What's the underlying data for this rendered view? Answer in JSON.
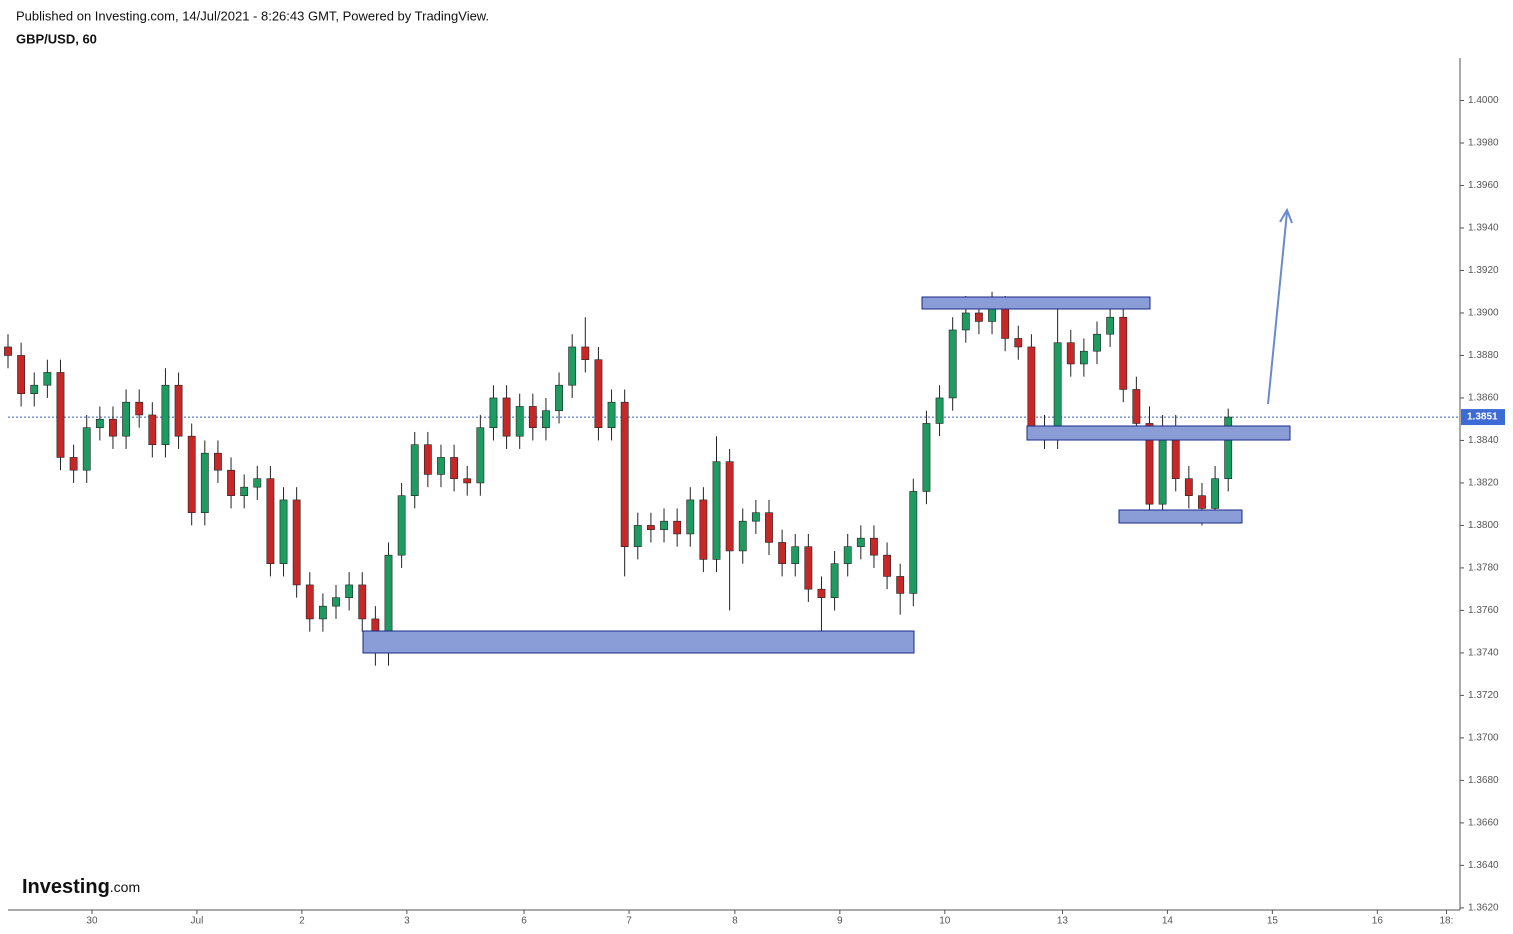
{
  "chart_data": {
    "type": "candlestick",
    "subtitle": "Published on Investing.com, 14/Jul/2021 - 8:26:43 GMT, Powered by TradingView.",
    "title": "GBP/USD, 60",
    "up_color": "#1e9b60",
    "down_color": "#c62828",
    "outline_color": "#222222",
    "xlim": [
      0,
      332
    ],
    "xticks": [
      {
        "value": 19.2,
        "label": "30"
      },
      {
        "value": 43.2,
        "label": "Jul"
      },
      {
        "value": 67.2,
        "label": "2"
      },
      {
        "value": 91.2,
        "label": "3"
      },
      {
        "value": 118,
        "label": "6"
      },
      {
        "value": 142,
        "label": "7"
      },
      {
        "value": 166.2,
        "label": "8"
      },
      {
        "value": 190.2,
        "label": "9"
      },
      {
        "value": 214.2,
        "label": "10"
      },
      {
        "value": 241.1,
        "label": "13"
      },
      {
        "value": 265.1,
        "label": "14"
      },
      {
        "value": 289.1,
        "label": "15"
      },
      {
        "value": 313.1,
        "label": "16"
      },
      {
        "value": 328.9,
        "label": "18:"
      }
    ],
    "ylim": [
      1.3619,
      1.402
    ],
    "yticks": [
      {
        "value": 1.362,
        "label": "1.3620"
      },
      {
        "value": 1.364,
        "label": "1.3640"
      },
      {
        "value": 1.366,
        "label": "1.3660"
      },
      {
        "value": 1.368,
        "label": "1.3680"
      },
      {
        "value": 1.37,
        "label": "1.3700"
      },
      {
        "value": 1.372,
        "label": "1.3720"
      },
      {
        "value": 1.374,
        "label": "1.3740"
      },
      {
        "value": 1.376,
        "label": "1.3760"
      },
      {
        "value": 1.378,
        "label": "1.3780"
      },
      {
        "value": 1.38,
        "label": "1.3800"
      },
      {
        "value": 1.382,
        "label": "1.3820"
      },
      {
        "value": 1.384,
        "label": "1.3840"
      },
      {
        "value": 1.386,
        "label": "1.3860"
      },
      {
        "value": 1.388,
        "label": "1.3880"
      },
      {
        "value": 1.39,
        "label": "1.3900"
      },
      {
        "value": 1.392,
        "label": "1.3920"
      },
      {
        "value": 1.394,
        "label": "1.3940"
      },
      {
        "value": 1.396,
        "label": "1.3960"
      },
      {
        "value": 1.398,
        "label": "1.3980"
      },
      {
        "value": 1.4,
        "label": "1.4000"
      }
    ],
    "last_price": 1.3851,
    "x": [
      0,
      3,
      6,
      9,
      12,
      15,
      18,
      21,
      24,
      27,
      30,
      33,
      36,
      39,
      42,
      45,
      48,
      51,
      54,
      57,
      60,
      63,
      66,
      69,
      72,
      75,
      78,
      81,
      84,
      87,
      90,
      93,
      96,
      99,
      102,
      105,
      108,
      111,
      114,
      117,
      120,
      123,
      126,
      129,
      132,
      135,
      138,
      141,
      144,
      147,
      150,
      153,
      156,
      159,
      162,
      165,
      168,
      171,
      174,
      177,
      180,
      183,
      186,
      189,
      192,
      195,
      198,
      201,
      204,
      207,
      210,
      213,
      216,
      219,
      222,
      225,
      228,
      231,
      234,
      237,
      240,
      243,
      246,
      249,
      252,
      255,
      258,
      261,
      264,
      267,
      270,
      273,
      276,
      279
    ],
    "open": [
      1.3884,
      1.388,
      1.3862,
      1.3866,
      1.3872,
      1.3832,
      1.3826,
      1.3846,
      1.385,
      1.3842,
      1.3858,
      1.3852,
      1.3838,
      1.3866,
      1.3842,
      1.3806,
      1.3834,
      1.3826,
      1.3814,
      1.3818,
      1.3822,
      1.3782,
      1.3812,
      1.3772,
      1.3756,
      1.3762,
      1.3766,
      1.3772,
      1.3756,
      1.374,
      1.3786,
      1.3814,
      1.3838,
      1.3824,
      1.3832,
      1.3822,
      1.382,
      1.3846,
      1.386,
      1.3842,
      1.3856,
      1.3846,
      1.3854,
      1.3866,
      1.3884,
      1.3878,
      1.3846,
      1.3858,
      1.379,
      1.38,
      1.3798,
      1.3802,
      1.3796,
      1.3812,
      1.3784,
      1.383,
      1.3788,
      1.3802,
      1.3806,
      1.3792,
      1.3782,
      1.379,
      1.377,
      1.3766,
      1.3782,
      1.379,
      1.3794,
      1.3786,
      1.3776,
      1.3768,
      1.3816,
      1.3848,
      1.386,
      1.3892,
      1.39,
      1.3896,
      1.3902,
      1.3888,
      1.3884,
      1.3846,
      1.3842,
      1.3886,
      1.3876,
      1.3882,
      1.389,
      1.3898,
      1.3864,
      1.3848,
      1.381,
      1.3846,
      1.3822,
      1.3814,
      1.3808,
      1.3822
    ],
    "high": [
      1.389,
      1.3886,
      1.3872,
      1.3878,
      1.3878,
      1.3838,
      1.3852,
      1.3856,
      1.3856,
      1.3864,
      1.3864,
      1.3858,
      1.3874,
      1.3872,
      1.3848,
      1.384,
      1.384,
      1.3832,
      1.3824,
      1.3828,
      1.3828,
      1.3818,
      1.3818,
      1.3778,
      1.3768,
      1.3772,
      1.3778,
      1.3778,
      1.3762,
      1.3792,
      1.382,
      1.3844,
      1.3844,
      1.3838,
      1.3838,
      1.3828,
      1.3852,
      1.3866,
      1.3866,
      1.3862,
      1.3862,
      1.386,
      1.3872,
      1.389,
      1.3898,
      1.3884,
      1.3864,
      1.3864,
      1.3806,
      1.3806,
      1.3808,
      1.3808,
      1.3818,
      1.3818,
      1.3842,
      1.3836,
      1.3808,
      1.3812,
      1.3812,
      1.3798,
      1.3796,
      1.3796,
      1.3776,
      1.3788,
      1.3796,
      1.38,
      1.38,
      1.3792,
      1.3782,
      1.3822,
      1.3854,
      1.3866,
      1.3898,
      1.3908,
      1.3906,
      1.391,
      1.3908,
      1.3894,
      1.389,
      1.3852,
      1.3906,
      1.3892,
      1.3888,
      1.3896,
      1.3906,
      1.3904,
      1.387,
      1.3856,
      1.3852,
      1.3852,
      1.3828,
      1.382,
      1.3828,
      1.3855
    ],
    "low": [
      1.3874,
      1.3856,
      1.3856,
      1.386,
      1.3826,
      1.382,
      1.382,
      1.384,
      1.3836,
      1.3836,
      1.3846,
      1.3832,
      1.3832,
      1.3836,
      1.38,
      1.38,
      1.382,
      1.3808,
      1.3808,
      1.3812,
      1.3776,
      1.3776,
      1.3766,
      1.375,
      1.375,
      1.3756,
      1.376,
      1.375,
      1.3734,
      1.3734,
      1.378,
      1.3808,
      1.3818,
      1.3818,
      1.3816,
      1.3814,
      1.3814,
      1.384,
      1.3836,
      1.3836,
      1.384,
      1.384,
      1.3848,
      1.386,
      1.3872,
      1.384,
      1.384,
      1.3776,
      1.3784,
      1.3792,
      1.3792,
      1.379,
      1.379,
      1.3778,
      1.3778,
      1.376,
      1.3782,
      1.3796,
      1.3786,
      1.3776,
      1.3776,
      1.3764,
      1.3744,
      1.376,
      1.3776,
      1.3784,
      1.378,
      1.377,
      1.3758,
      1.3762,
      1.381,
      1.3842,
      1.3854,
      1.3886,
      1.389,
      1.389,
      1.3882,
      1.3878,
      1.384,
      1.3836,
      1.3836,
      1.387,
      1.387,
      1.3876,
      1.3884,
      1.3858,
      1.3842,
      1.3802,
      1.3804,
      1.3816,
      1.3808,
      1.38,
      1.3802,
      1.3816
    ],
    "close": [
      1.388,
      1.3862,
      1.3866,
      1.3872,
      1.3832,
      1.3826,
      1.3846,
      1.385,
      1.3842,
      1.3858,
      1.3852,
      1.3838,
      1.3866,
      1.3842,
      1.3806,
      1.3834,
      1.3826,
      1.3814,
      1.3818,
      1.3822,
      1.3782,
      1.3812,
      1.3772,
      1.3756,
      1.3762,
      1.3766,
      1.3772,
      1.3756,
      1.374,
      1.3786,
      1.3814,
      1.3838,
      1.3824,
      1.3832,
      1.3822,
      1.382,
      1.3846,
      1.386,
      1.3842,
      1.3856,
      1.3846,
      1.3854,
      1.3866,
      1.3884,
      1.3878,
      1.3846,
      1.3858,
      1.379,
      1.38,
      1.3798,
      1.3802,
      1.3796,
      1.3812,
      1.3784,
      1.383,
      1.3788,
      1.3802,
      1.3806,
      1.3792,
      1.3782,
      1.379,
      1.377,
      1.3766,
      1.3782,
      1.379,
      1.3794,
      1.3786,
      1.3776,
      1.3768,
      1.3816,
      1.3848,
      1.386,
      1.3892,
      1.39,
      1.3896,
      1.3902,
      1.3888,
      1.3884,
      1.3846,
      1.3842,
      1.3886,
      1.3876,
      1.3882,
      1.389,
      1.3898,
      1.3864,
      1.3848,
      1.381,
      1.3846,
      1.3822,
      1.3814,
      1.3808,
      1.3822,
      1.3851
    ]
  },
  "logo": {
    "brand": "Investing",
    "suffix": ".com"
  }
}
